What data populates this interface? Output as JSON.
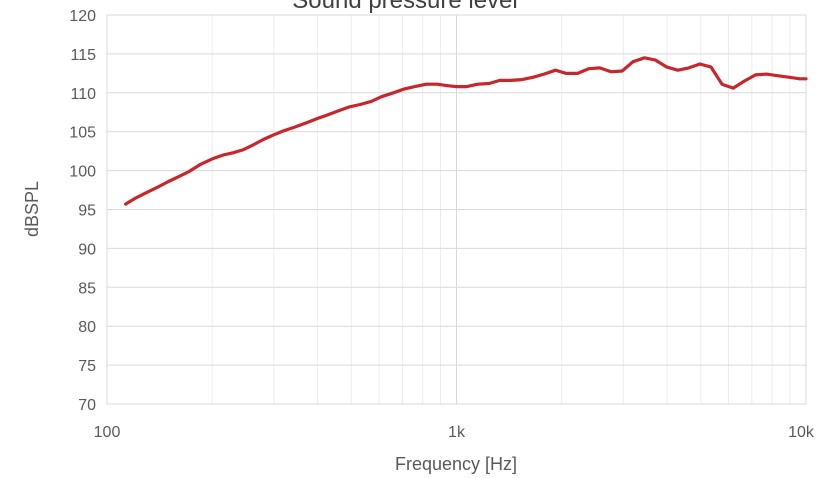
{
  "chart_data": {
    "type": "line",
    "title": "Sound pressure level",
    "xlabel": "Frequency [Hz]",
    "ylabel": "dBSPL",
    "x_scale": "log",
    "xlim": [
      100,
      10000
    ],
    "ylim": [
      70,
      120
    ],
    "grid": true,
    "legend": "none",
    "x_ticks": [
      {
        "value": 100,
        "label": "100"
      },
      {
        "value": 1000,
        "label": "1k"
      },
      {
        "value": 10000,
        "label": "10k"
      }
    ],
    "y_ticks": [
      {
        "value": 70,
        "label": "70"
      },
      {
        "value": 75,
        "label": "75"
      },
      {
        "value": 80,
        "label": "80"
      },
      {
        "value": 85,
        "label": "85"
      },
      {
        "value": 90,
        "label": "90"
      },
      {
        "value": 95,
        "label": "95"
      },
      {
        "value": 100,
        "label": "100"
      },
      {
        "value": 105,
        "label": "105"
      },
      {
        "value": 110,
        "label": "110"
      },
      {
        "value": 115,
        "label": "115"
      },
      {
        "value": 120,
        "label": "120"
      }
    ],
    "series": [
      {
        "color": "#c8262b",
        "x": [
          113,
          120,
          130,
          140,
          150,
          160,
          172,
          185,
          200,
          215,
          230,
          246,
          262,
          280,
          300,
          320,
          345,
          370,
          400,
          430,
          460,
          495,
          530,
          570,
          610,
          660,
          710,
          760,
          820,
          880,
          950,
          1000,
          1070,
          1150,
          1240,
          1330,
          1430,
          1540,
          1660,
          1780,
          1920,
          2060,
          2220,
          2390,
          2570,
          2770,
          2980,
          3200,
          3450,
          3710,
          4000,
          4300,
          4620,
          4970,
          5350,
          5750,
          6190,
          6660,
          7170,
          7700,
          8290,
          8920,
          9600,
          10000
        ],
        "y": [
          95.7,
          96.4,
          97.2,
          97.9,
          98.6,
          99.2,
          99.9,
          100.8,
          101.5,
          102.0,
          102.3,
          102.7,
          103.3,
          104.0,
          104.6,
          105.1,
          105.6,
          106.1,
          106.7,
          107.2,
          107.7,
          108.2,
          108.5,
          108.9,
          109.5,
          110.0,
          110.5,
          110.8,
          111.1,
          111.1,
          110.9,
          110.8,
          110.8,
          111.1,
          111.2,
          111.6,
          111.6,
          111.7,
          112.0,
          112.4,
          112.9,
          112.5,
          112.5,
          113.1,
          113.2,
          112.7,
          112.8,
          114.0,
          114.5,
          114.2,
          113.3,
          112.9,
          113.2,
          113.7,
          113.3,
          111.1,
          110.6,
          111.5,
          112.3,
          112.4,
          112.2,
          112.0,
          111.8,
          111.8
        ]
      }
    ]
  }
}
